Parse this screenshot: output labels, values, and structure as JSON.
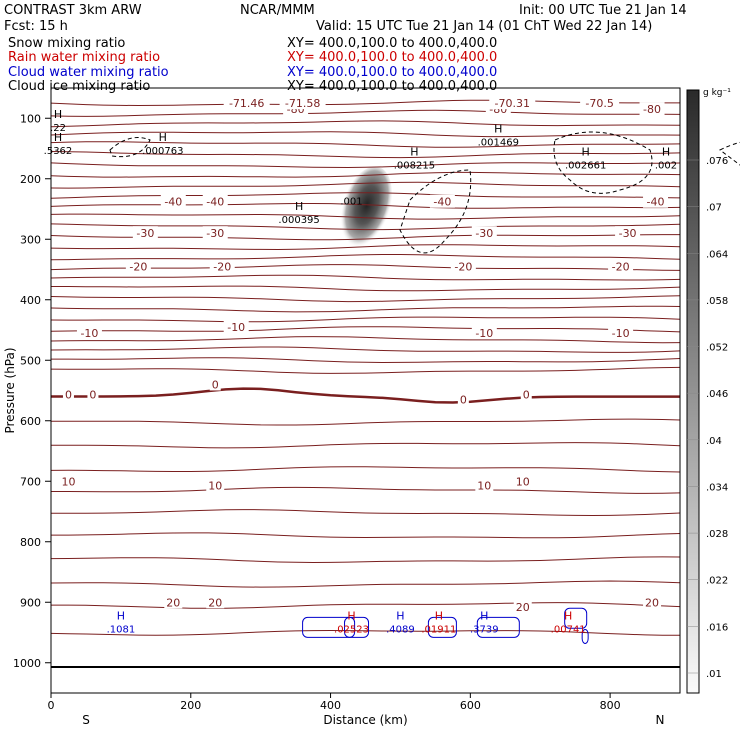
{
  "header": {
    "model": "CONTRAST  3km ARW",
    "org": "NCAR/MMM",
    "init": "Init: 00 UTC Tue 21 Jan 14",
    "fcst": "Fcst:   15 h",
    "valid": "Valid: 15 UTC Tue 21 Jan 14 (01 ChT Wed 22 Jan 14)"
  },
  "fields": [
    {
      "label": "Snow mixing ratio",
      "xy": "XY= 400.0,100.0 to 400.0,400.0",
      "color": "#000000"
    },
    {
      "label": "Rain water mixing ratio",
      "xy": "XY= 400.0,100.0 to 400.0,400.0",
      "color": "#cc0000"
    },
    {
      "label": "Cloud water mixing ratio",
      "xy": "XY= 400.0,100.0 to 400.0,400.0",
      "color": "#0000cc"
    },
    {
      "label": "Cloud ice mixing ratio",
      "xy": "XY= 400.0,100.0 to 400.0,400.0",
      "color": "#000000"
    }
  ],
  "chart_data": {
    "type": "contour cross-section",
    "xlabel": "Distance (km)",
    "ylabel": "Pressure (hPa)",
    "xlim": [
      0,
      900
    ],
    "ylim": [
      1050,
      50
    ],
    "xticks": [
      0,
      200,
      400,
      600,
      800
    ],
    "yticks": [
      100,
      200,
      300,
      400,
      500,
      600,
      700,
      800,
      900,
      1000
    ],
    "x_end_labels": {
      "left": "S",
      "right": "N"
    },
    "colorbar": {
      "unit": "g kg⁻¹",
      "ticks": [
        ".076",
        ".07",
        ".064",
        ".058",
        ".052",
        ".046",
        ".04",
        ".034",
        ".028",
        ".022",
        ".016",
        ".01"
      ]
    },
    "temperature_contours": [
      {
        "label": "-80",
        "x": [
          350,
          640,
          860
        ],
        "p": [
          85,
          85,
          85
        ]
      },
      {
        "label": "-71.46",
        "x": [
          280
        ],
        "p": [
          75
        ]
      },
      {
        "label": "-71.58",
        "x": [
          360
        ],
        "p": [
          75
        ]
      },
      {
        "label": "-70.31",
        "x": [
          660
        ],
        "p": [
          75
        ]
      },
      {
        "label": "-70.5",
        "x": [
          785
        ],
        "p": [
          75
        ]
      },
      {
        "label": "-40",
        "x": [
          175,
          235,
          560,
          865
        ],
        "p": [
          238,
          238,
          238,
          238
        ]
      },
      {
        "label": "-30",
        "x": [
          135,
          235,
          620,
          825
        ],
        "p": [
          290,
          290,
          290,
          290
        ]
      },
      {
        "label": "-20",
        "x": [
          125,
          245,
          590,
          815
        ],
        "p": [
          345,
          345,
          345,
          345
        ]
      },
      {
        "label": "-10",
        "x": [
          55,
          265,
          620,
          815
        ],
        "p": [
          455,
          445,
          455,
          455
        ]
      },
      {
        "label": "0",
        "x": [
          25,
          60,
          235,
          590,
          680
        ],
        "p": [
          557,
          557,
          540,
          565,
          557
        ]
      },
      {
        "label": "10",
        "x": [
          25,
          235,
          620,
          675
        ],
        "p": [
          700,
          707,
          707,
          700
        ]
      },
      {
        "label": "20",
        "x": [
          175,
          235,
          675,
          860
        ],
        "p": [
          900,
          900,
          908,
          900
        ]
      }
    ],
    "mixing_ratio_maxima": [
      {
        "field": "Snow mixing ratio",
        "label": "H",
        "value": ".5362",
        "x": 10,
        "p": 154
      },
      {
        "field": "Snow mixing ratio",
        "label": "H",
        "value": ".22",
        "x": 10,
        "p": 116
      },
      {
        "field": "Cloud ice mixing ratio",
        "label": "H",
        "value": ".000763",
        "x": 160,
        "p": 154
      },
      {
        "field": "Cloud ice mixing ratio",
        "label": "H",
        "value": ".008215",
        "x": 520,
        "p": 178
      },
      {
        "field": "Cloud ice mixing ratio",
        "label": "H",
        "value": ".001469",
        "x": 640,
        "p": 140
      },
      {
        "field": "Cloud ice mixing ratio",
        "label": "H",
        "value": ".002661",
        "x": 765,
        "p": 178
      },
      {
        "field": "Cloud ice mixing ratio",
        "label": "H",
        "value": ".002",
        "x": 880,
        "p": 178
      },
      {
        "field": "Cloud ice mixing ratio",
        "label": "H",
        "value": ".000395",
        "x": 355,
        "p": 268
      },
      {
        "field": "Cloud ice mixing ratio",
        "label": "",
        "value": ".001",
        "x": 430,
        "p": 238
      },
      {
        "field": "Cloud water mixing ratio",
        "label": "H",
        "value": ".1081",
        "x": 100,
        "p": 945
      },
      {
        "field": "Cloud water mixing ratio",
        "label": "H",
        "value": ".4089",
        "x": 500,
        "p": 945
      },
      {
        "field": "Cloud water mixing ratio",
        "label": "H",
        "value": ".3739",
        "x": 620,
        "p": 945
      },
      {
        "field": "Rain water mixing ratio",
        "label": "H",
        "value": ".02523",
        "x": 430,
        "p": 945
      },
      {
        "field": "Rain water mixing ratio",
        "label": "H",
        "value": ".01911",
        "x": 555,
        "p": 945
      },
      {
        "field": "Rain water mixing ratio",
        "label": "H",
        "value": ".00741",
        "x": 740,
        "p": 945
      }
    ]
  }
}
